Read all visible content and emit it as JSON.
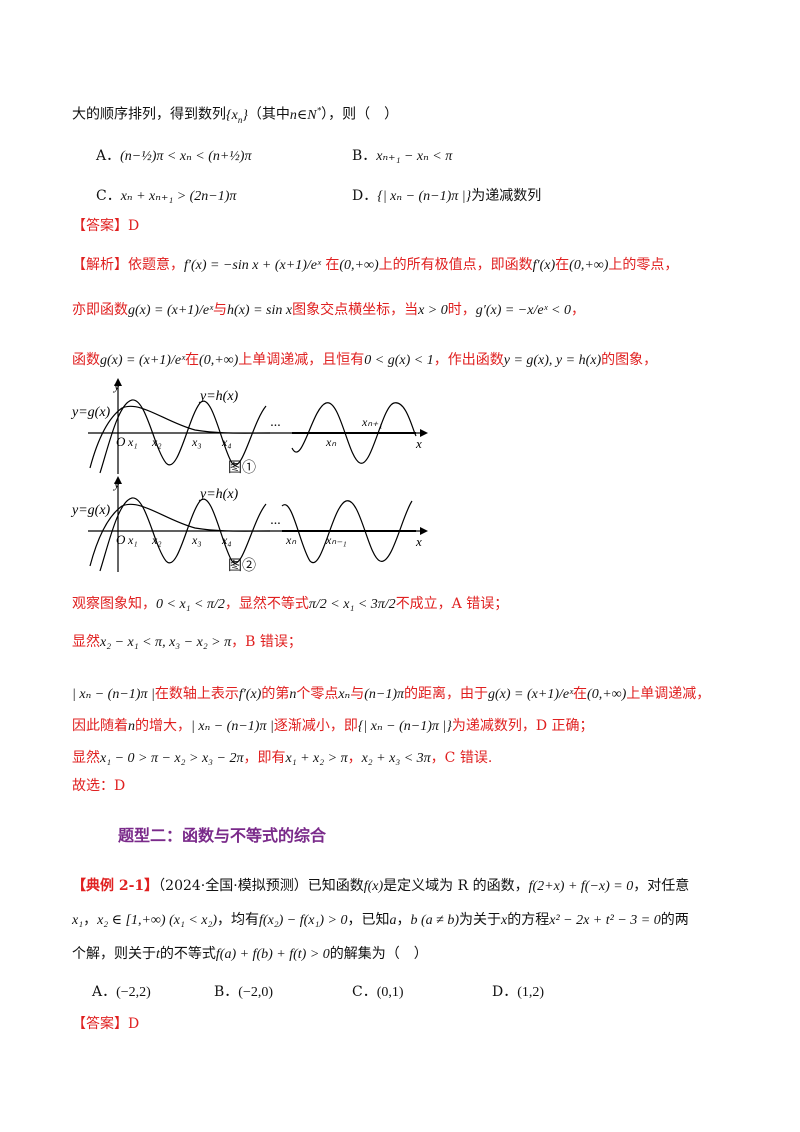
{
  "q1": {
    "stem_pre": "大的顺序排列，得到数列",
    "stem_seq": "{x",
    "stem_mid": "（其中",
    "stem_n": "n∈N",
    "stem_end": "），则（　）",
    "optA_label": "A．",
    "optA_text": "(n−½)π < xₙ < (n+½)π",
    "optB_label": "B．",
    "optB_text": "xₙ₊₁ − xₙ < π",
    "optC_label": "C．",
    "optC_text": "xₙ + xₙ₊₁ > (2n−1)π",
    "optD_label": "D．",
    "optD_text": "{| xₙ − (n−1)π |}",
    "optD_tail": "为递减数列",
    "answer": "【答案】D",
    "analysis_tag": "【解析】",
    "l1a": "依题意，",
    "l1b": "f′(x) = −sin x + (x+1)/eˣ",
    "l1c": "在",
    "l1d": "(0,+∞)",
    "l1e": "上的所有极值点，即函数",
    "l1f": "f′(x)",
    "l1g": "在",
    "l1h": "(0,+∞)",
    "l1i": "上的零点，",
    "l2a": "亦即函数",
    "l2b": "g(x) = (x+1)/eˣ",
    "l2c": "与",
    "l2d": "h(x) = sin x",
    "l2e": "图象交点横坐标，当",
    "l2f": "x > 0",
    "l2g": "时，",
    "l2h": "g′(x) = −x/eˣ < 0",
    "l2i": "，",
    "l3a": "函数",
    "l3b": "g(x) = (x+1)/eˣ",
    "l3c": "在",
    "l3d": "(0,+∞)",
    "l3e": "上单调递减，且恒有",
    "l3f": "0 < g(x) < 1",
    "l3g": "，作出函数",
    "l3h": "y = g(x), y = h(x)",
    "l3i": "的图象，",
    "fig1": {
      "y_axis": "y",
      "x_axis": "x",
      "g_label": "y=g(x)",
      "h_label": "y=h(x)",
      "origin": "O",
      "dots": "···",
      "x1": "x₁",
      "x2": "x₂",
      "x3": "x₃",
      "x4": "x₄",
      "xn": "xₙ",
      "xn1": "xₙ₊₁",
      "caption": "图①"
    },
    "fig2": {
      "y_axis": "y",
      "x_axis": "x",
      "g_label": "y=g(x)",
      "h_label": "y=h(x)",
      "origin": "O",
      "dots": "···",
      "x1": "x₁",
      "x2": "x₂",
      "x3": "x₃",
      "x4": "x₄",
      "xn": "xₙ",
      "xn1": "xₙ₋₁",
      "caption": "图②"
    },
    "l4a": "观察图象知，",
    "l4b": "0 < x₁ < π/2",
    "l4c": "，显然不等式",
    "l4d": "π/2 < x₁ < 3π/2",
    "l4e": "不成立，A 错误；",
    "l5a": "显然",
    "l5b": "x₂ − x₁ < π, x₃ − x₂ > π",
    "l5c": "，B 错误；",
    "l6a": "| xₙ − (n−1)π |",
    "l6b": "在数轴上表示",
    "l6c": "f′(x)",
    "l6d": "的第",
    "l6e": "n",
    "l6f": "个零点",
    "l6g": "xₙ",
    "l6h": "与",
    "l6i": "(n−1)π",
    "l6j": "的距离，由于",
    "l6k": "g(x) = (x+1)/eˣ",
    "l6l": "在",
    "l6m": "(0,+∞)",
    "l6n": "上单调递减，",
    "l7a": "因此随着",
    "l7b": "n",
    "l7c": "的增大，",
    "l7d": "| xₙ − (n−1)π |",
    "l7e": "逐渐减小，即",
    "l7f": "{| xₙ − (n−1)π |}",
    "l7g": "为递减数列，D 正确；",
    "l8a": "显然",
    "l8b": "x₁ − 0 > π − x₂ > x₃ − 2π",
    "l8c": "，即有",
    "l8d": "x₁ + x₂ > π",
    "l8e": "，",
    "l8f": "x₂ + x₃ < 3π",
    "l8g": "，C 错误.",
    "l9": "故选：D"
  },
  "section": {
    "title": "题型二：函数与不等式的综合"
  },
  "q2": {
    "tag": "【典例 2-1】",
    "src": "（2024·全国·模拟预测）已知函数",
    "f": "f(x)",
    "t1": "是定义域为 R 的函数，",
    "cond1": "f(2+x) + f(−x) = 0",
    "t2": "，对任意",
    "x1": "x₁",
    "t3": "，",
    "cond2": "x₂ ∈ [1,+∞) (x₁ < x₂)",
    "t4": "，均有",
    "cond3": "f(x₂) − f(x₁) > 0",
    "t5": "，已知",
    "a": "a",
    "t6": "，",
    "b": "b (a ≠ b)",
    "t7": "为关于",
    "x": "x",
    "t8": "的方程",
    "eq": "x² − 2x + t² − 3 = 0",
    "t9": "的两",
    "t10": "个解，则关于",
    "t": "t",
    "t11": "的不等式",
    "ineq": "f(a) + f(b) + f(t) > 0",
    "t12": "的解集为（　）",
    "optA_label": "A．",
    "optA": "(−2,2)",
    "optB_label": "B．",
    "optB": "(−2,0)",
    "optC_label": "C．",
    "optC": "(0,1)",
    "optD_label": "D．",
    "optD": "(1,2)",
    "answer": "【答案】D"
  }
}
